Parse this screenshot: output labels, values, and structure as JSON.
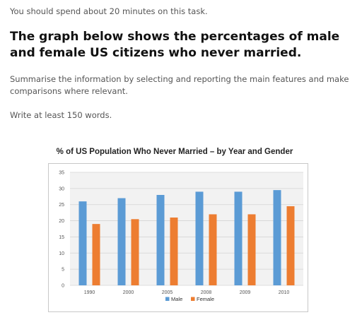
{
  "task": {
    "time_note": "You should spend about 20 minutes on this task.",
    "heading": "The graph below shows the percentages of male and female US citizens who never married.",
    "instructions": "Summarise the information by selecting and reporting the main features and make comparisons where relevant.",
    "word_count": "Write at least 150 words."
  },
  "chart_data": {
    "type": "bar",
    "title": "% of US Population Who Never Married – by Year and Gender",
    "categories": [
      "1990",
      "2000",
      "2005",
      "2008",
      "2009",
      "2010"
    ],
    "series": [
      {
        "name": "Male",
        "color": "#5b9bd5",
        "values": [
          26,
          27,
          28,
          29,
          29,
          29.5
        ]
      },
      {
        "name": "Female",
        "color": "#ed7d31",
        "values": [
          19,
          20.5,
          21,
          22,
          22,
          24.5
        ]
      }
    ],
    "ylim": [
      0,
      35
    ],
    "yticks": [
      0,
      5,
      10,
      15,
      20,
      25,
      30,
      35
    ],
    "grid": true,
    "legend_position": "bottom"
  }
}
